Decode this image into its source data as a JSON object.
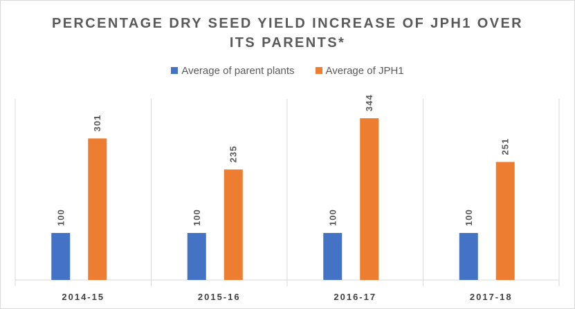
{
  "chart_data": {
    "type": "bar",
    "title": "PERCENTAGE DRY SEED YIELD INCREASE OF JPH1 OVER ITS PARENTS*",
    "title_lines": [
      "PERCENTAGE DRY SEED YIELD INCREASE OF JPH1 OVER",
      "ITS PARENTS*"
    ],
    "categories": [
      "2014-15",
      "2015-16",
      "2016-17",
      "2017-18"
    ],
    "series": [
      {
        "name": "Average of parent plants",
        "color": "#4472c4",
        "values": [
          100,
          100,
          100,
          100
        ]
      },
      {
        "name": "Average of JPH1",
        "color": "#ed7d31",
        "values": [
          301,
          235,
          344,
          251
        ]
      }
    ],
    "ylim": [
      0,
      400
    ],
    "grid": false,
    "legend": "top-center",
    "xlabel": "",
    "ylabel": ""
  }
}
